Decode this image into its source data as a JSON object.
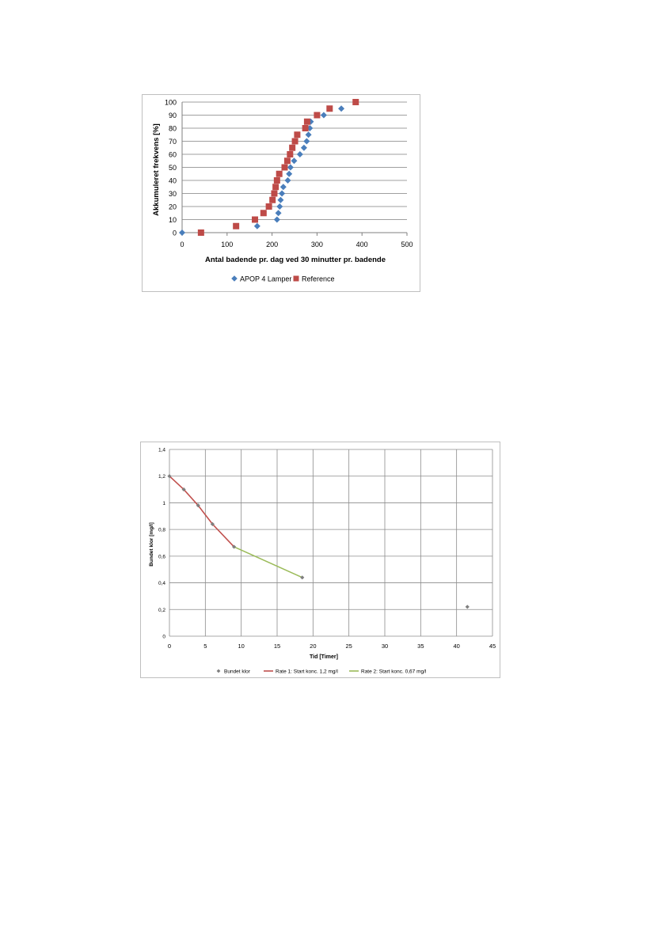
{
  "chart_data": [
    {
      "type": "scatter",
      "title": "",
      "xlabel": "Antal badende pr. dag ved 30 minutter pr. badende",
      "ylabel": "Akkumuleret frekvens [%]",
      "xlim": [
        0,
        500
      ],
      "ylim": [
        0,
        100
      ],
      "xticks": [
        "0",
        "100",
        "200",
        "300",
        "400",
        "500"
      ],
      "yticks": [
        "0",
        "10",
        "20",
        "30",
        "40",
        "50",
        "60",
        "70",
        "80",
        "90",
        "100"
      ],
      "grid": "horizontal",
      "legend_position": "bottom",
      "series": [
        {
          "name": "APOP 4 Lamper",
          "color": "#4a7ebb",
          "marker": "diamond",
          "points": [
            [
              0,
              0
            ],
            [
              167,
              5
            ],
            [
              211,
              10
            ],
            [
              214,
              15
            ],
            [
              217,
              20
            ],
            [
              219,
              25
            ],
            [
              222,
              30
            ],
            [
              225,
              35
            ],
            [
              235,
              40
            ],
            [
              238,
              45
            ],
            [
              241,
              50
            ],
            [
              249,
              55
            ],
            [
              262,
              60
            ],
            [
              271,
              65
            ],
            [
              277,
              70
            ],
            [
              281,
              75
            ],
            [
              284,
              80
            ],
            [
              286,
              85
            ],
            [
              315,
              90
            ],
            [
              354,
              95
            ]
          ]
        },
        {
          "name": "Reference",
          "color": "#be4b48",
          "marker": "square",
          "points": [
            [
              42,
              0
            ],
            [
              120,
              5
            ],
            [
              162,
              10
            ],
            [
              181,
              15
            ],
            [
              193,
              20
            ],
            [
              201,
              25
            ],
            [
              205,
              30
            ],
            [
              208,
              35
            ],
            [
              211,
              40
            ],
            [
              216,
              45
            ],
            [
              228,
              50
            ],
            [
              234,
              55
            ],
            [
              240,
              60
            ],
            [
              245,
              65
            ],
            [
              251,
              70
            ],
            [
              256,
              75
            ],
            [
              274,
              80
            ],
            [
              278,
              85
            ],
            [
              300,
              90
            ],
            [
              328,
              95
            ],
            [
              386,
              100
            ]
          ]
        }
      ]
    },
    {
      "type": "scatter",
      "title": "",
      "xlabel": "Tid [Timer]",
      "ylabel": "Bundet klor [mg/l]",
      "xlim": [
        0,
        45
      ],
      "ylim": [
        0,
        1.4
      ],
      "xticks": [
        "0",
        "5",
        "10",
        "15",
        "20",
        "25",
        "30",
        "35",
        "40",
        "45"
      ],
      "yticks": [
        "0",
        "0,2",
        "0,4",
        "0,6",
        "0,8",
        "1",
        "1,2",
        "1,4"
      ],
      "grid": "both",
      "legend_position": "bottom",
      "series": [
        {
          "name": "Bundet klor",
          "color": "#7f7f7f",
          "marker": "diamond",
          "points": [
            [
              0,
              1.2
            ],
            [
              2,
              1.1
            ],
            [
              4,
              0.98
            ],
            [
              6,
              0.84
            ],
            [
              9,
              0.67
            ],
            [
              18.5,
              0.44
            ],
            [
              41.5,
              0.22
            ]
          ]
        },
        {
          "name": "Rate 1: Start konc. 1,2 mg/l",
          "color": "#c0504d",
          "line": true,
          "points": [
            [
              0,
              1.2
            ],
            [
              2,
              1.1
            ],
            [
              4,
              0.98
            ],
            [
              6,
              0.84
            ],
            [
              9,
              0.67
            ]
          ]
        },
        {
          "name": "Rate 2: Start konc. 0,67 mg/l",
          "color": "#9bbb59",
          "line": true,
          "points": [
            [
              9,
              0.67
            ],
            [
              18.5,
              0.44
            ]
          ]
        }
      ]
    }
  ]
}
